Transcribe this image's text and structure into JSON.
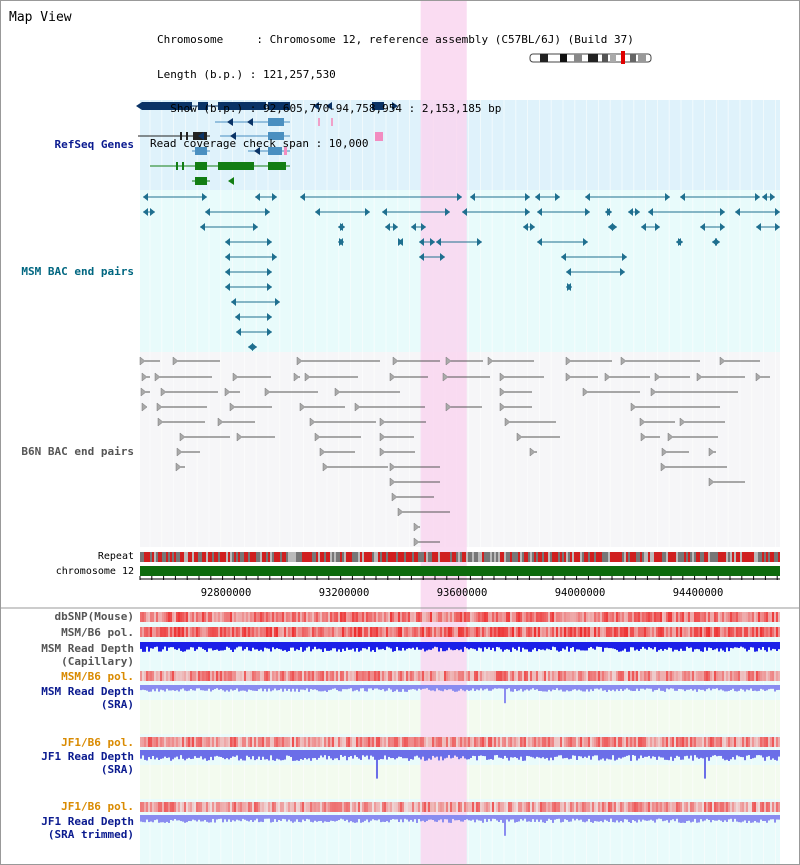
{
  "page": {
    "title": "Map View"
  },
  "info": {
    "chromosome_line": "Chromosome     : Chromosome 12, reference assembly (C57BL/6J) (Build 37)",
    "length_line": "Length (b.p.) : 121,257,530",
    "show_line": "  Show (b.p.) : 92,605,770-94,758,954 : 2,153,185 bp",
    "coverage_line": "Read coverage check span : 10,000"
  },
  "region": {
    "start": 92605770,
    "end": 94758954,
    "highlight_start": 93550000,
    "highlight_end": 93705000
  },
  "axis": {
    "ticks": [
      "92800000",
      "93200000",
      "93600000",
      "94000000",
      "94400000"
    ]
  },
  "tracks": {
    "refseq": {
      "label": "RefSeq Genes"
    },
    "msm_bac": {
      "label": "MSM BAC end pairs"
    },
    "b6n_bac": {
      "label": "B6N BAC end pairs"
    },
    "repeat": {
      "label": "Repeat"
    },
    "chromosome": {
      "label": "chromosome 12"
    },
    "dbsnp": {
      "label": "dbSNP(Mouse)"
    },
    "msm_b6_pol_1": {
      "label": "MSM/B6 pol."
    },
    "msm_depth_cap": {
      "line1": "MSM Read Depth",
      "line2": "(Capillary)"
    },
    "msm_b6_pol_2": {
      "label": "MSM/B6 pol."
    },
    "msm_depth_sra": {
      "line1": "MSM Read Depth",
      "line2": "(SRA)"
    },
    "jf1_b6_pol_1": {
      "label": "JF1/B6 pol."
    },
    "jf1_depth_sra": {
      "line1": "JF1 Read Depth",
      "line2": "(SRA)"
    },
    "jf1_b6_pol_2": {
      "label": "JF1/B6 pol."
    },
    "jf1_depth_trim": {
      "line1": "JF1 Read Depth",
      "line2": "(SRA trimmed)"
    }
  },
  "colors": {
    "refseq_bg": "#dff2fb",
    "msm_bg": "#e8fbfb",
    "b6n_bg": "#f6f6f8",
    "highlight": "#f9d6f0",
    "gene_dark": "#0a3366",
    "gene_mid": "#4a8fc0",
    "gene_green": "#137d13",
    "msm_pair": "#1f6f8f",
    "b6n_pair": "#555555",
    "chrom_green": "#0d6b0d",
    "label_blue": "#0a1a8f",
    "label_teal": "#006680",
    "label_orange": "#d98a00",
    "depth_blue": "#1c20e8",
    "depth_light": "#8a8cf0",
    "depth_bg": "#f3fbef"
  }
}
